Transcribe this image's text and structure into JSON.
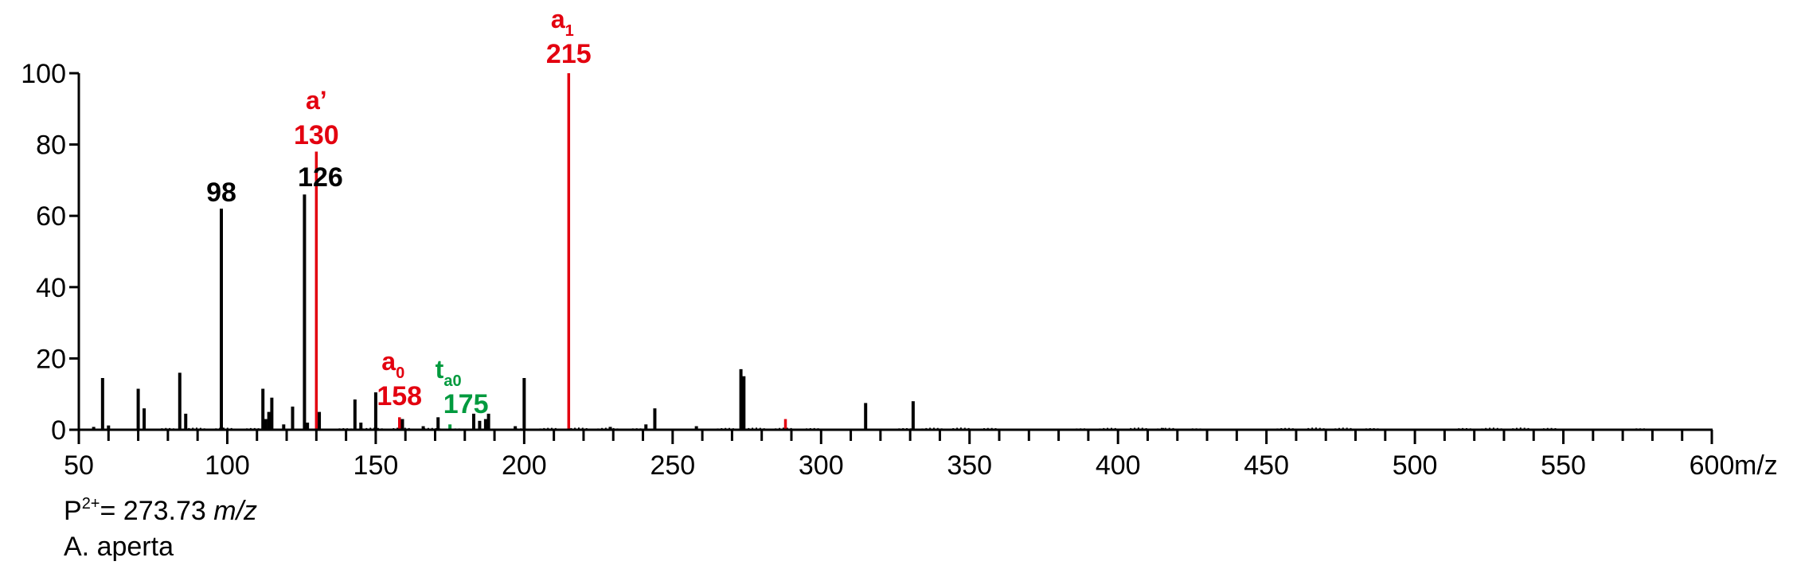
{
  "chart_data": {
    "type": "bar",
    "title": "",
    "xlabel": "m/z",
    "ylabel": "",
    "xlim": [
      50,
      600
    ],
    "ylim": [
      0,
      100
    ],
    "x_ticks": [
      "50",
      "100",
      "150",
      "200",
      "250",
      "300",
      "350",
      "400",
      "450",
      "500",
      "550",
      "600"
    ],
    "x_unit": "m/z",
    "y_ticks": [
      "0",
      "20",
      "40",
      "60",
      "80",
      "100"
    ],
    "colors": {
      "black": "#000000",
      "red": "#e3000f",
      "green": "#009a3e"
    },
    "peaks": [
      {
        "mz": 55,
        "value": 0.8,
        "color": "black"
      },
      {
        "mz": 58,
        "value": 14.5,
        "color": "black"
      },
      {
        "mz": 60,
        "value": 1.2,
        "color": "black"
      },
      {
        "mz": 70,
        "value": 11.5,
        "color": "black"
      },
      {
        "mz": 72,
        "value": 6,
        "color": "black"
      },
      {
        "mz": 84,
        "value": 16,
        "color": "black"
      },
      {
        "mz": 86,
        "value": 4.5,
        "color": "black"
      },
      {
        "mz": 98,
        "value": 62,
        "color": "black"
      },
      {
        "mz": 112,
        "value": 11.5,
        "color": "black"
      },
      {
        "mz": 113,
        "value": 3,
        "color": "black"
      },
      {
        "mz": 114,
        "value": 5,
        "color": "black"
      },
      {
        "mz": 115,
        "value": 9,
        "color": "black"
      },
      {
        "mz": 119,
        "value": 1.5,
        "color": "black"
      },
      {
        "mz": 122,
        "value": 6.5,
        "color": "black"
      },
      {
        "mz": 126,
        "value": 66,
        "color": "black"
      },
      {
        "mz": 127,
        "value": 2,
        "color": "black"
      },
      {
        "mz": 130,
        "value": 78,
        "color": "red"
      },
      {
        "mz": 131,
        "value": 5,
        "color": "black"
      },
      {
        "mz": 143,
        "value": 8.5,
        "color": "black"
      },
      {
        "mz": 145,
        "value": 2,
        "color": "black"
      },
      {
        "mz": 150,
        "value": 10.5,
        "color": "black"
      },
      {
        "mz": 158,
        "value": 3.5,
        "color": "red"
      },
      {
        "mz": 159,
        "value": 3,
        "color": "black"
      },
      {
        "mz": 166,
        "value": 1,
        "color": "black"
      },
      {
        "mz": 171,
        "value": 3.5,
        "color": "black"
      },
      {
        "mz": 175,
        "value": 1.5,
        "color": "green"
      },
      {
        "mz": 183,
        "value": 4.5,
        "color": "black"
      },
      {
        "mz": 185,
        "value": 2.5,
        "color": "black"
      },
      {
        "mz": 187,
        "value": 3,
        "color": "black"
      },
      {
        "mz": 188,
        "value": 4.5,
        "color": "black"
      },
      {
        "mz": 197,
        "value": 1,
        "color": "black"
      },
      {
        "mz": 200,
        "value": 14.5,
        "color": "black"
      },
      {
        "mz": 215,
        "value": 100,
        "color": "red"
      },
      {
        "mz": 229,
        "value": 0.8,
        "color": "black"
      },
      {
        "mz": 241,
        "value": 1.5,
        "color": "black"
      },
      {
        "mz": 244,
        "value": 6,
        "color": "black"
      },
      {
        "mz": 258,
        "value": 1,
        "color": "black"
      },
      {
        "mz": 273,
        "value": 17,
        "color": "black"
      },
      {
        "mz": 274,
        "value": 15,
        "color": "black"
      },
      {
        "mz": 288,
        "value": 3,
        "color": "red"
      },
      {
        "mz": 315,
        "value": 7.5,
        "color": "black"
      },
      {
        "mz": 331,
        "value": 8,
        "color": "black"
      },
      {
        "mz": 415,
        "value": 0.5,
        "color": "black"
      }
    ],
    "annotations": [
      {
        "mz": 98,
        "label": "98",
        "color": "black",
        "ion": "",
        "ion_sub": ""
      },
      {
        "mz": 126,
        "label": "126",
        "color": "black",
        "ion": "",
        "ion_sub": ""
      },
      {
        "mz": 130,
        "label": "130",
        "color": "red",
        "ion": "a’",
        "ion_sub": ""
      },
      {
        "mz": 158,
        "label": "158",
        "color": "red",
        "ion": "a",
        "ion_sub": "0"
      },
      {
        "mz": 175,
        "label": "175",
        "color": "green",
        "ion": "t",
        "ion_sub": "a0"
      },
      {
        "mz": 215,
        "label": "215",
        "color": "red",
        "ion": "a",
        "ion_sub": "1"
      }
    ]
  },
  "caption": {
    "precursor_prefix": "P",
    "precursor_charge": "2+",
    "precursor_value": "= 273.73 ",
    "precursor_unit": "m/z",
    "species": "A. aperta"
  }
}
